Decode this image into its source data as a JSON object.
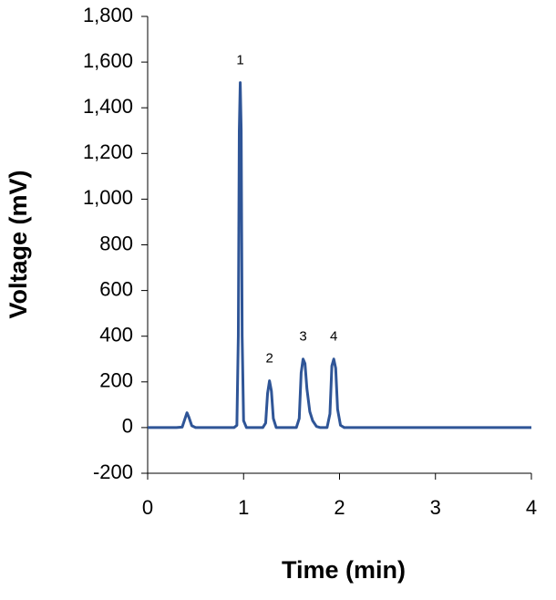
{
  "chart_data": {
    "type": "line",
    "x_label": "Time (min)",
    "y_label": "Voltage (mV)",
    "xlim": [
      0,
      4
    ],
    "xticks": [
      0,
      1,
      2,
      3,
      4
    ],
    "ylim": [
      -200,
      1800
    ],
    "yticks": [
      {
        "value": 1800,
        "label": "1,800"
      },
      {
        "value": 1600,
        "label": "1,600"
      },
      {
        "value": 1400,
        "label": "1,400"
      },
      {
        "value": 1200,
        "label": "1,200"
      },
      {
        "value": 1000,
        "label": "1,000"
      },
      800,
      600,
      400,
      200,
      0,
      -200
    ],
    "grid": false,
    "annotations": [
      "1",
      "2",
      "3",
      "4"
    ],
    "series": [
      {
        "color": "#2f5597",
        "x": [
          0,
          0.3,
          0.36,
          0.39,
          0.41,
          0.43,
          0.46,
          0.5,
          0.9,
          0.93,
          0.945,
          0.955,
          0.965,
          0.975,
          0.985,
          1.0,
          1.03,
          1.2,
          1.23,
          1.25,
          1.27,
          1.29,
          1.31,
          1.34,
          1.55,
          1.58,
          1.6,
          1.62,
          1.64,
          1.66,
          1.69,
          1.72,
          1.76,
          1.8,
          1.87,
          1.9,
          1.92,
          1.94,
          1.96,
          1.98,
          2.01,
          2.05,
          4
        ],
        "values": [
          0,
          0,
          2,
          40,
          65,
          45,
          8,
          0,
          0,
          10,
          400,
          1300,
          1510,
          1300,
          400,
          30,
          0,
          0,
          20,
          150,
          205,
          160,
          40,
          0,
          0,
          40,
          240,
          300,
          280,
          170,
          70,
          30,
          5,
          0,
          0,
          60,
          270,
          300,
          260,
          80,
          10,
          0,
          0
        ]
      }
    ]
  }
}
